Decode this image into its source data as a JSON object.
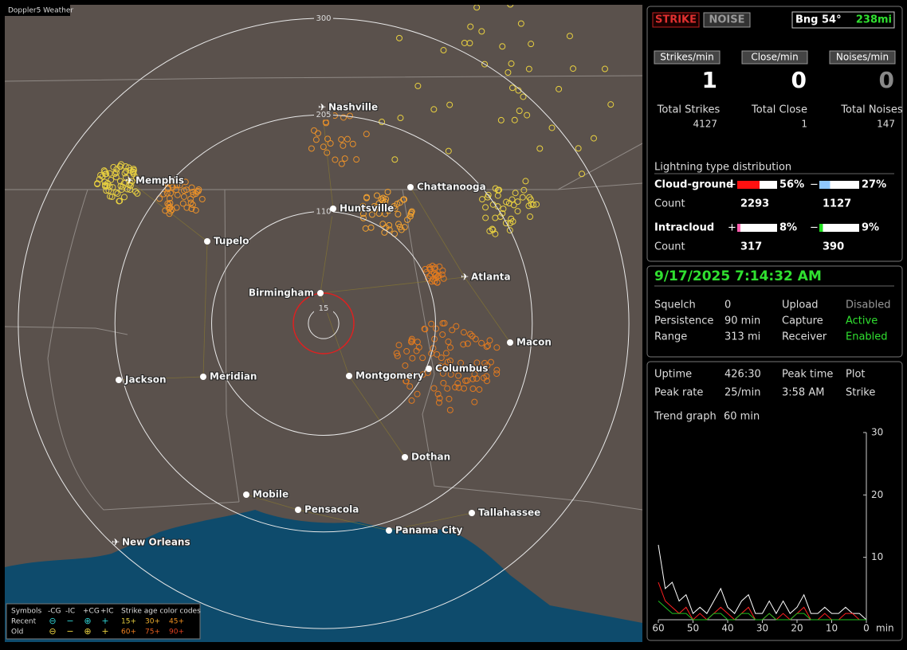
{
  "title": "Doppler5 Weather",
  "map": {
    "range_rings": [
      300,
      205,
      110,
      15
    ],
    "cities": [
      "Nashville",
      "Memphis",
      "Chattanooga",
      "Huntsville",
      "Tupelo",
      "Atlanta",
      "Birmingham",
      "Macon",
      "Columbus",
      "Montgomery",
      "Meridian",
      "Jackson",
      "Dothan",
      "Mobile",
      "Pensacola",
      "Tallahassee",
      "Panama City",
      "New Orleans"
    ]
  },
  "legend": {
    "header": [
      "Symbols",
      "-CG",
      "-IC",
      "+CG",
      "+IC",
      "Strike age color codes"
    ],
    "rows": [
      {
        "label": "Recent",
        "ages": [
          "15+",
          "30+",
          "45+"
        ]
      },
      {
        "label": "Old",
        "ages": [
          "60+",
          "75+",
          "90+"
        ]
      }
    ]
  },
  "panel": {
    "buttons": [
      "STRIKE",
      "NOISE"
    ],
    "bearing": "Bng 54°",
    "distance": "238mi",
    "rates": [
      {
        "label": "Strikes/min",
        "value": 1
      },
      {
        "label": "Close/min",
        "value": 0
      },
      {
        "label": "Noises/min",
        "value": 0
      }
    ],
    "totals": [
      {
        "label": "Total Strikes",
        "value": 4127
      },
      {
        "label": "Total Close",
        "value": 1
      },
      {
        "label": "Total Noises",
        "value": 147
      }
    ],
    "distribution": {
      "title": "Lightning type distribution",
      "count_label": "Count",
      "rows": [
        {
          "name": "Cloud-ground",
          "plus": {
            "value": 56,
            "label": "56%"
          },
          "minus": {
            "value": 27,
            "label": "27%"
          },
          "plus_count": 2293,
          "minus_count": 1127
        },
        {
          "name": "Intracloud",
          "plus": {
            "value": 8,
            "label": "8%"
          },
          "minus": {
            "value": 9,
            "label": "9%"
          },
          "plus_count": 317,
          "minus_count": 390
        }
      ]
    },
    "datetime": "9/17/2025 7:14:32 AM",
    "settings": [
      [
        "Squelch",
        "0",
        "Upload",
        "Disabled"
      ],
      [
        "Persistence",
        "90 min",
        "Capture",
        "Active"
      ],
      [
        "Range",
        "313 mi",
        "Receiver",
        "Enabled"
      ]
    ],
    "stats": [
      [
        "Uptime",
        "426:30",
        "Peak time",
        "Plot"
      ],
      [
        "Peak rate",
        "25/min",
        "3:58 AM",
        "Strike"
      ]
    ],
    "trend_label": "Trend graph",
    "trend_span": "60 min"
  },
  "chart_data": {
    "type": "line",
    "xlim": [
      60,
      0
    ],
    "ylim": [
      0,
      30
    ],
    "xticks": [
      60,
      50,
      40,
      30,
      20,
      10,
      0
    ],
    "yticks": [
      10,
      20,
      30
    ],
    "x_unit": "min",
    "x": [
      60,
      58,
      56,
      54,
      52,
      50,
      48,
      46,
      44,
      42,
      40,
      38,
      36,
      34,
      32,
      30,
      28,
      26,
      24,
      22,
      20,
      18,
      16,
      14,
      12,
      10,
      8,
      6,
      4,
      2,
      0
    ],
    "series": [
      {
        "name": "Strike",
        "color": "#ffffff",
        "values": [
          12,
          5,
          6,
          3,
          4,
          1,
          2,
          1,
          3,
          5,
          2,
          1,
          3,
          4,
          1,
          1,
          3,
          1,
          3,
          1,
          2,
          4,
          1,
          1,
          2,
          1,
          1,
          2,
          1,
          1,
          0
        ]
      },
      {
        "name": "-CG",
        "color": "#ff2020",
        "values": [
          6,
          3,
          2,
          1,
          2,
          0,
          1,
          0,
          1,
          2,
          1,
          0,
          1,
          2,
          0,
          0,
          1,
          0,
          1,
          0,
          1,
          2,
          0,
          0,
          1,
          0,
          0,
          1,
          1,
          0,
          0
        ]
      },
      {
        "name": "+IC",
        "color": "#20c020",
        "values": [
          3,
          2,
          1,
          1,
          1,
          0,
          0,
          0,
          1,
          1,
          0,
          0,
          1,
          1,
          0,
          0,
          1,
          0,
          0,
          0,
          1,
          1,
          0,
          0,
          0,
          0,
          0,
          0,
          0,
          0,
          0
        ]
      }
    ]
  }
}
